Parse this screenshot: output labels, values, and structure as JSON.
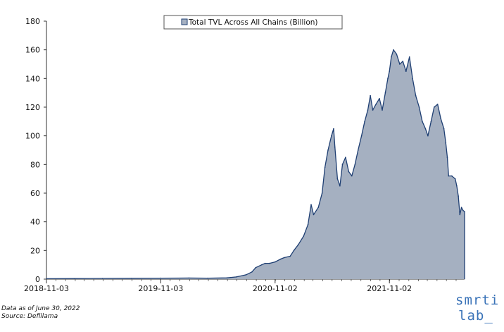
{
  "chart_data": {
    "type": "area",
    "legend": "Total TVL Across All Chains (Billion)",
    "legend_position": "top-center",
    "grid": false,
    "ylim": [
      0,
      180
    ],
    "yticks": [
      0,
      20,
      40,
      60,
      80,
      100,
      120,
      140,
      160,
      180
    ],
    "xlim": [
      "2018-11-03",
      "2022-06-30"
    ],
    "xticks": [
      "2018-11-03",
      "2019-11-03",
      "2020-11-02",
      "2021-11-02"
    ],
    "fill_color": "#a5b0c1",
    "line_color": "#1f3f73",
    "series": [
      {
        "name": "Total TVL Across All Chains (Billion)",
        "x": [
          "2018-11-03",
          "2019-02-01",
          "2019-05-01",
          "2019-08-01",
          "2019-11-03",
          "2020-02-01",
          "2020-04-01",
          "2020-06-01",
          "2020-07-01",
          "2020-08-01",
          "2020-08-20",
          "2020-09-01",
          "2020-09-20",
          "2020-10-01",
          "2020-10-15",
          "2020-11-02",
          "2020-11-20",
          "2020-12-01",
          "2020-12-20",
          "2021-01-01",
          "2021-01-15",
          "2021-02-01",
          "2021-02-15",
          "2021-02-25",
          "2021-03-05",
          "2021-03-20",
          "2021-04-01",
          "2021-04-10",
          "2021-04-20",
          "2021-05-01",
          "2021-05-08",
          "2021-05-12",
          "2021-05-20",
          "2021-05-28",
          "2021-06-05",
          "2021-06-15",
          "2021-06-25",
          "2021-07-05",
          "2021-07-15",
          "2021-07-25",
          "2021-08-05",
          "2021-08-15",
          "2021-08-25",
          "2021-09-02",
          "2021-09-10",
          "2021-09-20",
          "2021-10-01",
          "2021-10-10",
          "2021-10-20",
          "2021-10-28",
          "2021-11-02",
          "2021-11-08",
          "2021-11-15",
          "2021-11-25",
          "2021-12-05",
          "2021-12-15",
          "2021-12-25",
          "2022-01-05",
          "2022-01-15",
          "2022-01-25",
          "2022-02-05",
          "2022-02-15",
          "2022-02-25",
          "2022-03-05",
          "2022-03-15",
          "2022-03-25",
          "2022-04-05",
          "2022-04-15",
          "2022-04-25",
          "2022-05-01",
          "2022-05-06",
          "2022-05-10",
          "2022-05-20",
          "2022-05-31",
          "2022-06-05",
          "2022-06-10",
          "2022-06-15",
          "2022-06-20",
          "2022-06-25",
          "2022-06-30"
        ],
        "values": [
          0.3,
          0.4,
          0.5,
          0.6,
          0.7,
          0.8,
          0.7,
          0.9,
          1.5,
          3,
          5,
          8,
          10,
          11,
          11,
          12,
          14,
          15,
          16,
          20,
          24,
          30,
          38,
          52,
          45,
          50,
          60,
          78,
          90,
          100,
          105,
          92,
          70,
          65,
          80,
          85,
          75,
          72,
          80,
          90,
          100,
          110,
          118,
          128,
          118,
          122,
          126,
          118,
          130,
          140,
          145,
          155,
          160,
          157,
          150,
          152,
          145,
          155,
          140,
          128,
          120,
          110,
          105,
          100,
          110,
          120,
          122,
          112,
          105,
          95,
          85,
          72,
          72,
          70,
          65,
          58,
          45,
          50,
          48,
          47
        ]
      }
    ]
  },
  "notes": {
    "line1": "Data as of June 30, 2022",
    "line2": "Source: Defillama"
  },
  "logo": {
    "line1": "smrti",
    "line2": "lab_",
    "color": "#3a73b8"
  }
}
